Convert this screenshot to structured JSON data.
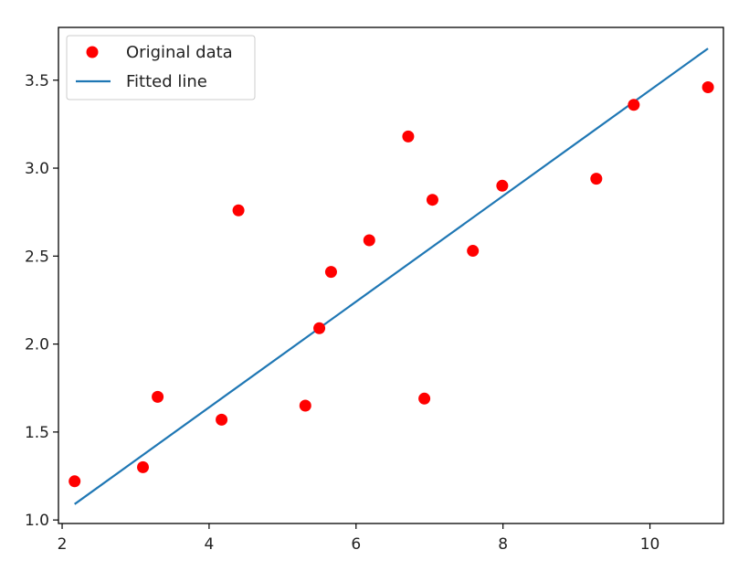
{
  "chart_data": {
    "type": "scatter",
    "title": "",
    "xlabel": "",
    "ylabel": "",
    "xlim": [
      1.95,
      11.0
    ],
    "ylim": [
      0.98,
      3.8
    ],
    "x_ticks": [
      2,
      4,
      6,
      8,
      10
    ],
    "y_ticks": [
      1.0,
      1.5,
      2.0,
      2.5,
      3.0,
      3.5
    ],
    "x_tick_labels": [
      "2",
      "4",
      "6",
      "8",
      "10"
    ],
    "y_tick_labels": [
      "1.0",
      "1.5",
      "2.0",
      "2.5",
      "3.0",
      "3.5"
    ],
    "grid": false,
    "legend_position": "top-left",
    "series": [
      {
        "name": "Original data",
        "kind": "points",
        "color": "#ff0000",
        "x": [
          2.17,
          3.1,
          3.3,
          4.17,
          4.4,
          5.31,
          5.5,
          5.66,
          6.18,
          6.71,
          6.93,
          7.04,
          7.59,
          7.99,
          9.27,
          9.78,
          10.79
        ],
        "y": [
          1.22,
          1.3,
          1.7,
          1.57,
          2.76,
          1.65,
          2.09,
          2.41,
          2.59,
          3.18,
          1.69,
          2.82,
          2.53,
          2.9,
          2.94,
          3.36,
          3.46
        ]
      },
      {
        "name": "Fitted line",
        "kind": "line",
        "color": "#1f77b4",
        "x": [
          2.17,
          10.79
        ],
        "y": [
          1.09,
          3.68
        ]
      }
    ]
  }
}
